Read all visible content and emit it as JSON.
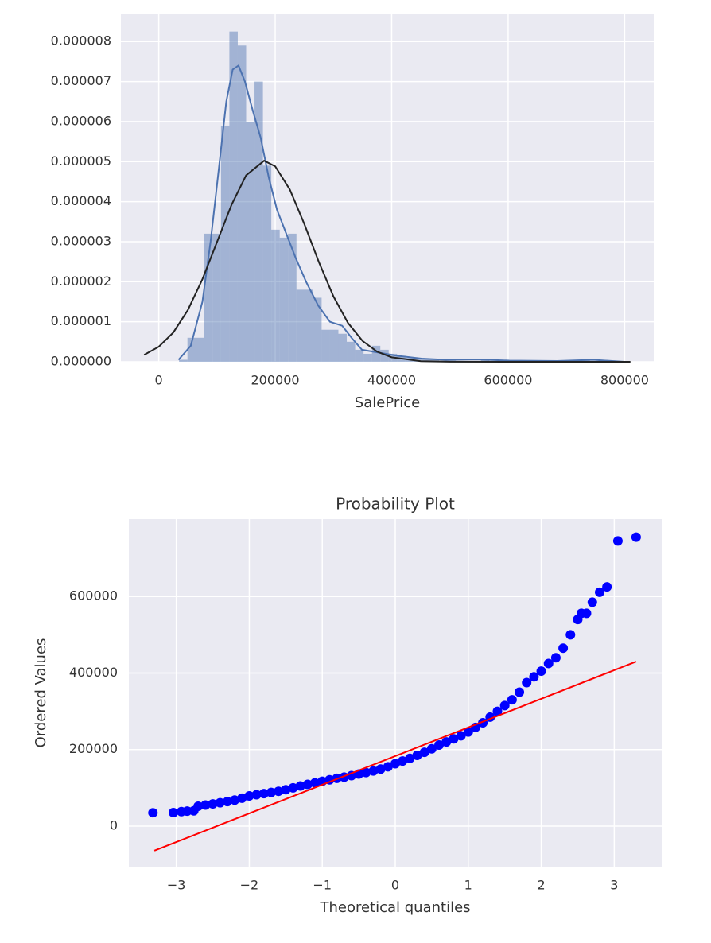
{
  "chart_data": [
    {
      "type": "histogram",
      "xlabel": "SalePrice",
      "color": "#4c72b0",
      "bins": [
        34900,
        49300,
        63700,
        78100,
        92500,
        106900,
        121300,
        135700,
        150100,
        164500,
        178900,
        193300,
        207700,
        222100,
        236500,
        250900,
        265300,
        279700,
        294100,
        308500,
        322900,
        337300,
        351700,
        366100,
        380500,
        394900,
        409300,
        423700,
        438100,
        452500,
        466900,
        481300,
        495700,
        510100,
        524500,
        538900,
        553300,
        567700,
        582100,
        596500,
        610900,
        625300,
        639700,
        654100,
        668500,
        682900,
        697300,
        711700,
        726100,
        740500,
        754900
      ],
      "values": [
        5e-08,
        6e-07,
        6e-07,
        3.2e-06,
        3.2e-06,
        5.9e-06,
        8.25e-06,
        7.9e-06,
        6e-06,
        7e-06,
        4.9e-06,
        3.3e-06,
        3.1e-06,
        3.2e-06,
        1.8e-06,
        1.8e-06,
        1.6e-06,
        8e-07,
        8e-07,
        7e-07,
        5e-07,
        3e-07,
        2e-07,
        4e-07,
        3e-07,
        2e-07,
        1.5e-07,
        1e-07,
        1e-07,
        7e-08,
        5e-08,
        3e-08,
        3e-08,
        2e-08,
        1e-08,
        1e-08,
        5e-08,
        1e-08,
        2e-08,
        1e-08,
        1e-08,
        0,
        0,
        1e-08,
        0,
        0,
        1e-08,
        0,
        5e-08,
        1e-08
      ],
      "series": [
        {
          "color": "#4c72b0",
          "x": [
            34000,
            55000,
            75000,
            89000,
            103000,
            116000,
            127000,
            137000,
            148000,
            161000,
            175000,
            189000,
            203000,
            219000,
            235000,
            253000,
            274000,
            294000,
            315000,
            331000,
            349000,
            369000,
            390000,
            410000,
            451000,
            493000,
            547000,
            602000,
            684000,
            746000,
            800000
          ],
          "values": [
            5e-08,
            4e-07,
            1.5e-06,
            3e-06,
            4.8e-06,
            6.5e-06,
            7.3e-06,
            7.4e-06,
            7e-06,
            6.3e-06,
            5.6e-06,
            4.6e-06,
            3.8e-06,
            3.2e-06,
            2.6e-06,
            2e-06,
            1.4e-06,
            1e-06,
            9e-07,
            6e-07,
            3e-07,
            2.5e-07,
            2e-07,
            1.5e-07,
            8e-08,
            5e-08,
            6e-08,
            3e-08,
            2e-08,
            5e-08,
            0
          ]
        },
        {
          "color": "#222222",
          "x": [
            -25000,
            0,
            25000,
            50000,
            75000,
            100000,
            125000,
            150000,
            181000,
            200000,
            225000,
            250000,
            275000,
            300000,
            325000,
            350000,
            375000,
            400000,
            450000,
            500000,
            600000,
            700000,
            810000
          ],
          "values": [
            1.74e-07,
            3.75e-07,
            7.31e-07,
            1.292e-06,
            2.063e-06,
            2.99e-06,
            3.921e-06,
            4.657e-06,
            5.024e-06,
            4.881e-06,
            4.307e-06,
            3.442e-06,
            2.49e-06,
            1.633e-06,
            9.7e-07,
            5.21e-07,
            2.53e-07,
            1.12e-07,
            1.6e-08,
            1.6e-09,
            0,
            0,
            0
          ]
        }
      ],
      "xlim": [
        -65000,
        850000
      ],
      "ylim": [
        0,
        8.7e-06
      ],
      "xticks": [
        0,
        200000,
        400000,
        600000,
        800000
      ],
      "yticks": [
        {
          "value": 0,
          "label": "0.000000"
        },
        {
          "value": 1e-06,
          "label": "0.000001"
        },
        {
          "value": 2e-06,
          "label": "0.000002"
        },
        {
          "value": 3e-06,
          "label": "0.000003"
        },
        {
          "value": 4e-06,
          "label": "0.000004"
        },
        {
          "value": 5e-06,
          "label": "0.000005"
        },
        {
          "value": 6e-06,
          "label": "0.000006"
        },
        {
          "value": 7e-06,
          "label": "0.000007"
        },
        {
          "value": 8e-06,
          "label": "0.000008"
        }
      ],
      "grid": true
    },
    {
      "type": "scatter",
      "title": "Probability Plot",
      "xlabel": "Theoretical quantiles",
      "ylabel": "Ordered Values",
      "series": [
        {
          "color": "#0000ff",
          "x": [
            -3.32,
            -3.04,
            -2.93,
            -2.85,
            -2.76,
            -2.7,
            -2.6,
            -2.5,
            -2.4,
            -2.3,
            -2.2,
            -2.1,
            -2.0,
            -1.9,
            -1.8,
            -1.7,
            -1.6,
            -1.5,
            -1.4,
            -1.3,
            -1.2,
            -1.1,
            -1.0,
            -0.9,
            -0.8,
            -0.7,
            -0.6,
            -0.5,
            -0.4,
            -0.3,
            -0.2,
            -0.1,
            0,
            0.1,
            0.2,
            0.3,
            0.4,
            0.5,
            0.6,
            0.7,
            0.8,
            0.9,
            1.0,
            1.1,
            1.2,
            1.3,
            1.4,
            1.5,
            1.6,
            1.7,
            1.8,
            1.9,
            2.0,
            2.1,
            2.2,
            2.3,
            2.4,
            2.5,
            2.55,
            2.62,
            2.7,
            2.8,
            2.9,
            3.05,
            3.3
          ],
          "values": [
            34900,
            35300,
            37900,
            39300,
            40000,
            52000,
            55000,
            58000,
            61000,
            64000,
            68000,
            73000,
            79000,
            82000,
            85000,
            88000,
            91000,
            95000,
            100000,
            105000,
            109000,
            113000,
            117000,
            121000,
            125000,
            128000,
            132000,
            136000,
            140000,
            144000,
            149000,
            155000,
            163000,
            170000,
            177000,
            185000,
            193000,
            202000,
            212000,
            220000,
            228000,
            236000,
            246000,
            258000,
            270000,
            285000,
            300000,
            315000,
            330000,
            350000,
            375000,
            390000,
            405000,
            425000,
            440000,
            465000,
            500000,
            540000,
            556000,
            556000,
            585000,
            611000,
            625000,
            745000,
            755000
          ]
        },
        {
          "type": "line",
          "color": "#ff0000",
          "x": [
            -3.3,
            3.3
          ],
          "values": [
            -64000,
            430000
          ]
        }
      ],
      "xlim": [
        -3.65,
        3.65
      ],
      "ylim": [
        -106000,
        802000
      ],
      "xticks": [
        {
          "value": -3,
          "label": "−3"
        },
        {
          "value": -2,
          "label": "−2"
        },
        {
          "value": -1,
          "label": "−1"
        },
        0,
        1,
        2,
        3
      ],
      "yticks": [
        0,
        200000,
        400000,
        600000
      ],
      "grid": true
    }
  ]
}
